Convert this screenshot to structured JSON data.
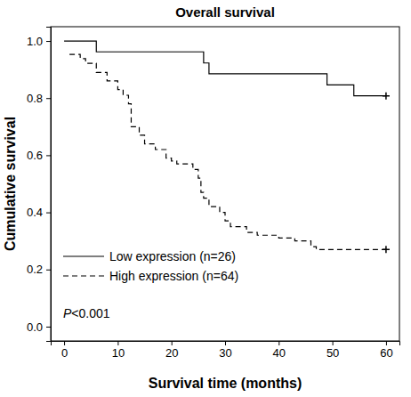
{
  "chart_data": {
    "type": "step",
    "title": "Overall survival",
    "x_label": "Survival time (months)",
    "y_label": "Cumulative survival",
    "annotation": "P<0.001",
    "xlim": [
      -2.5,
      62.5
    ],
    "ylim": [
      -0.05,
      1.05
    ],
    "xticks": [
      0,
      10,
      20,
      30,
      40,
      50,
      60
    ],
    "yticks": [
      {
        "value": 0,
        "label": "0.0"
      },
      0.2,
      0.4,
      0.6,
      0.8,
      {
        "value": 1,
        "label": "1.0"
      }
    ],
    "grid": false,
    "legend": "lower left",
    "series": [
      {
        "name": "Low expression (n=26)",
        "color": "#000000",
        "line_style": "solid",
        "marker": "plus",
        "x": [
          0,
          6,
          26,
          27,
          49,
          54,
          60
        ],
        "values": [
          1.0,
          0.962,
          0.923,
          0.885,
          0.846,
          0.808,
          0.808
        ]
      },
      {
        "name": "High expression (n=64)",
        "color": "#000000",
        "line_style": "dashed",
        "marker": "plus",
        "x": [
          1,
          3,
          4,
          6,
          8,
          10,
          11,
          12,
          12.5,
          14,
          15,
          17,
          19,
          20,
          21,
          24,
          25,
          25.5,
          26,
          27,
          29,
          30,
          31,
          34,
          36,
          40,
          43,
          46,
          47,
          60
        ],
        "values": [
          0.953,
          0.938,
          0.922,
          0.89,
          0.86,
          0.83,
          0.81,
          0.78,
          0.7,
          0.67,
          0.64,
          0.62,
          0.59,
          0.58,
          0.57,
          0.55,
          0.52,
          0.47,
          0.45,
          0.42,
          0.4,
          0.37,
          0.35,
          0.33,
          0.32,
          0.31,
          0.3,
          0.28,
          0.27,
          0.27
        ]
      }
    ]
  }
}
